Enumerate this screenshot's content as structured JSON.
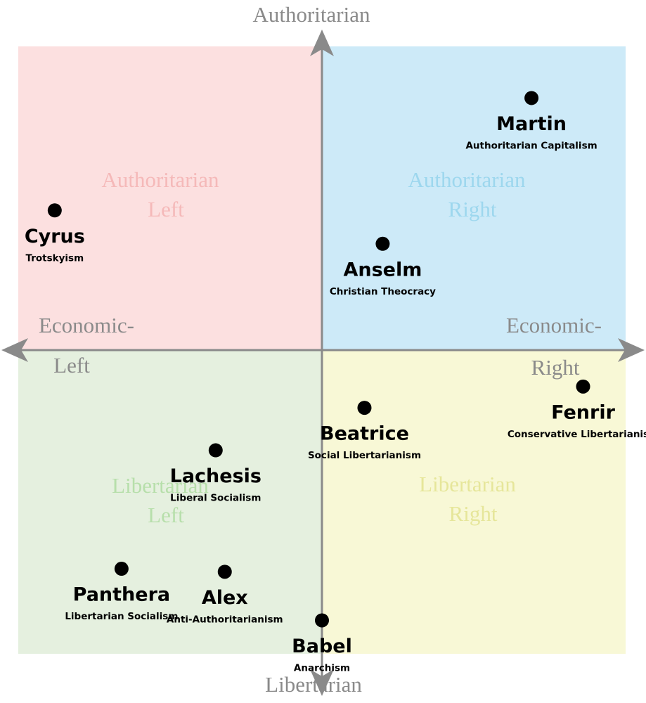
{
  "chart_data": {
    "type": "scatter",
    "xlim": [
      -10,
      10
    ],
    "ylim": [
      -10,
      10
    ],
    "axis_labels": {
      "top": "Authoritarian",
      "bottom": "Libertarian",
      "left": [
        "Economic-",
        "Left"
      ],
      "right": [
        "Economic-",
        "Right"
      ]
    },
    "quadrants": [
      {
        "label": [
          "Authoritarian",
          "Left"
        ],
        "color": "#fce0e0",
        "text_color": "#f5b9b9"
      },
      {
        "label": [
          "Authoritarian",
          "Right"
        ],
        "color": "#cdeaf8",
        "text_color": "#9dd7ee"
      },
      {
        "label": [
          "Libertarian",
          "Left"
        ],
        "color": "#e5f0df",
        "text_color": "#b7dfab"
      },
      {
        "label": [
          "Libertarian",
          "Right"
        ],
        "color": "#f8f8d6",
        "text_color": "#e6e69a"
      }
    ],
    "color": "#000000",
    "points": {
      "names": [
        "Martin",
        "Cyrus",
        "Anselm",
        "Fenrir",
        "Beatrice",
        "Lachesis",
        "Panthera",
        "Alex",
        "Babel"
      ],
      "ideologies": [
        "Authoritarian Capitalism",
        "Trotskyism",
        "Christian Theocracy",
        "Conservative Libertarianism",
        "Social Libertarianism",
        "Liberal Socialism",
        "Libertarian Socialism",
        "Anti-Authoritarianism",
        "Anarchism"
      ],
      "x": [
        6.9,
        -8.8,
        2.0,
        8.6,
        1.4,
        -3.5,
        -6.6,
        -3.2,
        0
      ],
      "y": [
        8.3,
        4.6,
        3.5,
        -1.2,
        -1.9,
        -3.3,
        -7.2,
        -7.3,
        -8.9
      ]
    }
  }
}
